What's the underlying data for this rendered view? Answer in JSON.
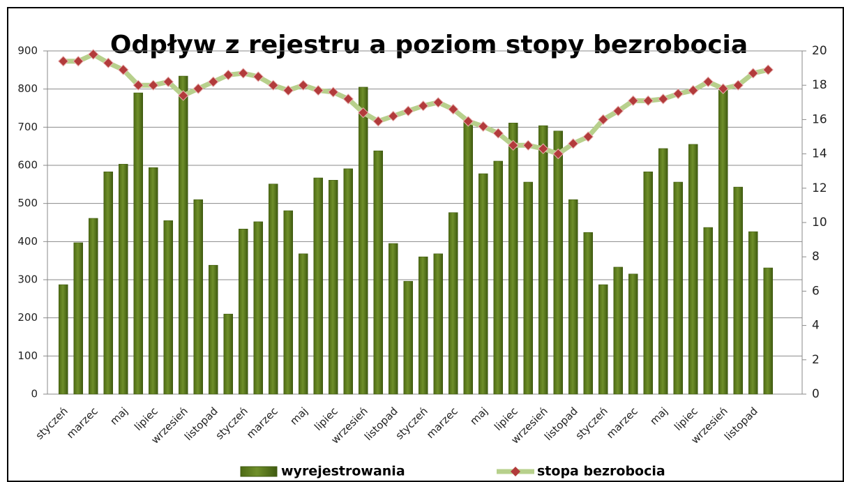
{
  "chart_data": {
    "type": "bar_line",
    "title": "Odpływ z rejestru a poziom stopy bezrobocia",
    "categories": [
      "styczeń",
      null,
      "marzec",
      null,
      "maj",
      null,
      "lipiec",
      null,
      "wrzesień",
      null,
      "listopad",
      null,
      "styczeń",
      null,
      "marzec",
      null,
      "maj",
      null,
      "lipiec",
      null,
      "wrzesień",
      null,
      "listopad",
      null,
      "styczeń",
      null,
      "marzec",
      null,
      "maj",
      null,
      "lipiec",
      null,
      "wrzesień",
      null,
      "listopad",
      null,
      "styczeń",
      null,
      "marzec",
      null,
      "maj",
      null,
      "lipiec",
      null,
      "wrzesień",
      null,
      "listopad",
      null
    ],
    "series": [
      {
        "name": "wyrejestrowania",
        "color": "#6f8f2a",
        "axis": "y",
        "kind": "bar",
        "values": [
          287,
          397,
          461,
          583,
          603,
          790,
          594,
          455,
          834,
          510,
          338,
          210,
          433,
          452,
          551,
          481,
          368,
          567,
          561,
          591,
          805,
          638,
          395,
          296,
          360,
          368,
          476,
          713,
          578,
          611,
          711,
          556,
          704,
          690,
          510,
          424,
          287,
          333,
          315,
          583,
          644,
          556,
          655,
          437,
          797,
          543,
          426,
          331
        ]
      },
      {
        "name": "stopa bezrobocia",
        "color": "#b7d08c",
        "marker_color": "#b23b3b",
        "axis": "y2",
        "kind": "line",
        "values": [
          19.4,
          19.4,
          19.8,
          19.3,
          18.9,
          18.0,
          18.0,
          18.2,
          17.4,
          17.8,
          18.2,
          18.6,
          18.7,
          18.5,
          18.0,
          17.7,
          18.0,
          17.7,
          17.6,
          17.2,
          16.4,
          15.9,
          16.2,
          16.5,
          16.8,
          17.0,
          16.6,
          15.9,
          15.6,
          15.2,
          14.5,
          14.5,
          14.3,
          14.0,
          14.6,
          15.0,
          16.0,
          16.5,
          17.1,
          17.1,
          17.2,
          17.5,
          17.7,
          18.2,
          17.8,
          18.0,
          18.7,
          18.9
        ]
      }
    ],
    "ylim": [
      0,
      900
    ],
    "yticks": [
      0,
      100,
      200,
      300,
      400,
      500,
      600,
      700,
      800,
      900
    ],
    "y2lim": [
      0,
      20
    ],
    "y2ticks": [
      0,
      2,
      4,
      6,
      8,
      10,
      12,
      14,
      16,
      18,
      20
    ],
    "grid": true,
    "legend": "bottom"
  }
}
